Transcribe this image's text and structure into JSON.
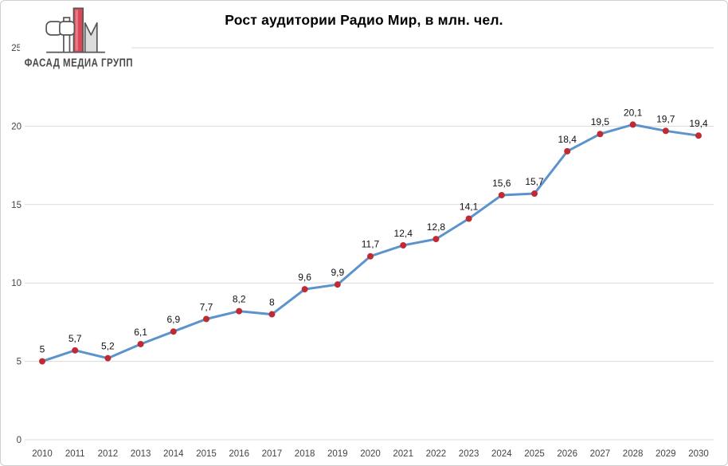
{
  "header": {
    "title": "Рост аудитории Радио Мир, в млн. чел.",
    "logo_text": "ФАСАД МЕДИА ГРУПП"
  },
  "chart_data": {
    "type": "line",
    "title": "Рост аудитории Радио Мир, в млн. чел.",
    "categories": [
      "2010",
      "2011",
      "2012",
      "2013",
      "2014",
      "2015",
      "2016",
      "2017",
      "2018",
      "2019",
      "2020",
      "2021",
      "2022",
      "2023",
      "2024",
      "2025",
      "2026",
      "2027",
      "2028",
      "2029",
      "2030"
    ],
    "values": [
      5,
      5.7,
      5.2,
      6.1,
      6.9,
      7.7,
      8.2,
      8,
      9.6,
      9.9,
      11.7,
      12.4,
      12.8,
      14.1,
      15.6,
      15.7,
      18.4,
      19.5,
      20.1,
      19.7,
      19.4
    ],
    "point_labels": [
      "5",
      "5,7",
      "5,2",
      "6,1",
      "6,9",
      "7,7",
      "8,2",
      "8",
      "9,6",
      "9,9",
      "11,7",
      "12,4",
      "12,8",
      "14,1",
      "15,6",
      "15,7",
      "18,4",
      "19,5",
      "20,1",
      "19,7",
      "19,4"
    ],
    "xlabel": "",
    "ylabel": "",
    "ylim": [
      0,
      25
    ],
    "yticks": [
      0,
      5,
      10,
      15,
      20,
      25
    ],
    "ytick_labels": [
      "0",
      "5",
      "10",
      "15",
      "20",
      "25"
    ],
    "grid": "horizontal",
    "legend": "none",
    "colors": {
      "line": "#5B93CC",
      "marker": "#C02B33",
      "gridline": "#D9D9D9",
      "axis_text": "#444444",
      "data_label": "#111111"
    },
    "logo_colors": {
      "red": "#D9485A",
      "outline": "#555555",
      "light_gray": "#DCDCDC"
    }
  }
}
